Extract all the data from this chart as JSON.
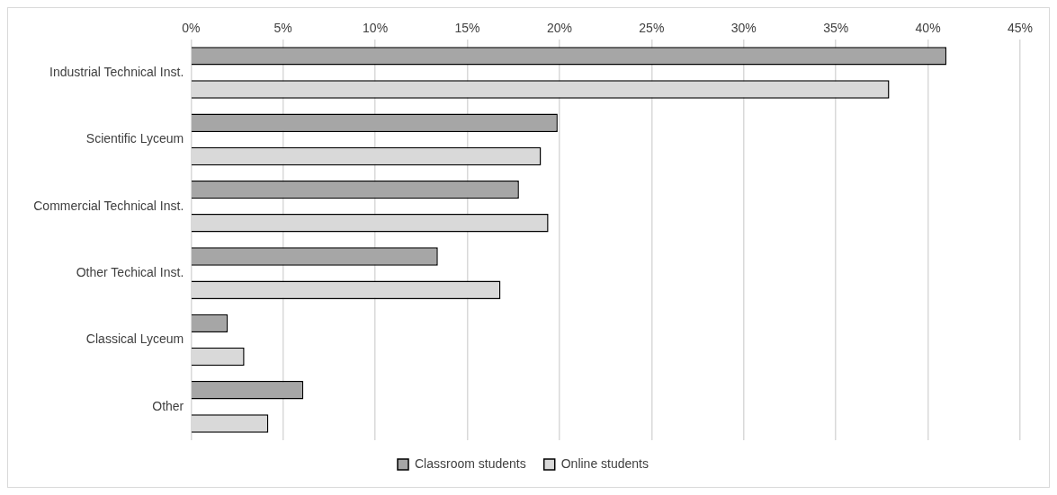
{
  "chart_data": {
    "type": "bar",
    "orientation": "horizontal",
    "categories": [
      "Industrial Technical Inst.",
      "Scientific Lyceum",
      "Commercial Technical Inst.",
      "Other Techical Inst.",
      "Classical Lyceum",
      "Other"
    ],
    "series": [
      {
        "name": "Classroom students",
        "color": "#a6a6a6",
        "values": [
          41.0,
          19.9,
          17.8,
          13.4,
          2.0,
          6.1
        ]
      },
      {
        "name": "Online students",
        "color": "#d9d9d9",
        "values": [
          37.9,
          19.0,
          19.4,
          16.8,
          2.9,
          4.2
        ]
      }
    ],
    "xlim": [
      0,
      45
    ],
    "xticks": [
      {
        "value": 0,
        "label": "0%"
      },
      {
        "value": 5,
        "label": "5%"
      },
      {
        "value": 10,
        "label": "10%"
      },
      {
        "value": 15,
        "label": "15%"
      },
      {
        "value": 20,
        "label": "20%"
      },
      {
        "value": 25,
        "label": "25%"
      },
      {
        "value": 30,
        "label": "30%"
      },
      {
        "value": 35,
        "label": "35%"
      },
      {
        "value": 40,
        "label": "40%"
      },
      {
        "value": 45,
        "label": "45%"
      }
    ],
    "grid": "x",
    "legend": "bottom"
  }
}
